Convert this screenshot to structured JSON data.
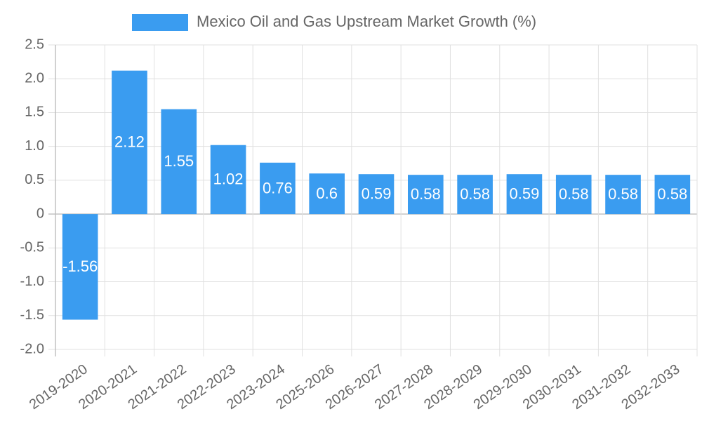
{
  "chart_data": {
    "type": "bar",
    "title": "",
    "xlabel": "",
    "ylabel": "",
    "legend": {
      "position": "top-center",
      "entries": [
        "Mexico Oil and Gas Upstream Market Growth (%)"
      ]
    },
    "categories": [
      "2019-2020",
      "2020-2021",
      "2021-2022",
      "2022-2023",
      "2023-2024",
      "2025-2026",
      "2026-2027",
      "2027-2028",
      "2028-2029",
      "2029-2030",
      "2030-2031",
      "2031-2032",
      "2032-2033"
    ],
    "series": [
      {
        "name": "Mexico Oil and Gas Upstream Market Growth (%)",
        "values": [
          -1.56,
          2.12,
          1.55,
          1.02,
          0.76,
          0.6,
          0.59,
          0.58,
          0.58,
          0.59,
          0.58,
          0.58,
          0.58
        ],
        "labels": [
          "-1.56",
          "2.12",
          "1.55",
          "1.02",
          "0.76",
          "0.6",
          "0.59",
          "0.58",
          "0.58",
          "0.59",
          "0.58",
          "0.58",
          "0.58"
        ],
        "color": "#3a9cf0"
      }
    ],
    "ylim": [
      -2.0,
      2.5
    ],
    "yticks": [
      2.5,
      2.0,
      1.5,
      1.0,
      0.5,
      0,
      -0.5,
      -1.0,
      -1.5,
      -2.0
    ],
    "ytick_labels": [
      "2.5",
      "2.0",
      "1.5",
      "1.0",
      "0.5",
      "0",
      "-0.5",
      "-1.0",
      "-1.5",
      "-2.0"
    ],
    "grid": true
  }
}
